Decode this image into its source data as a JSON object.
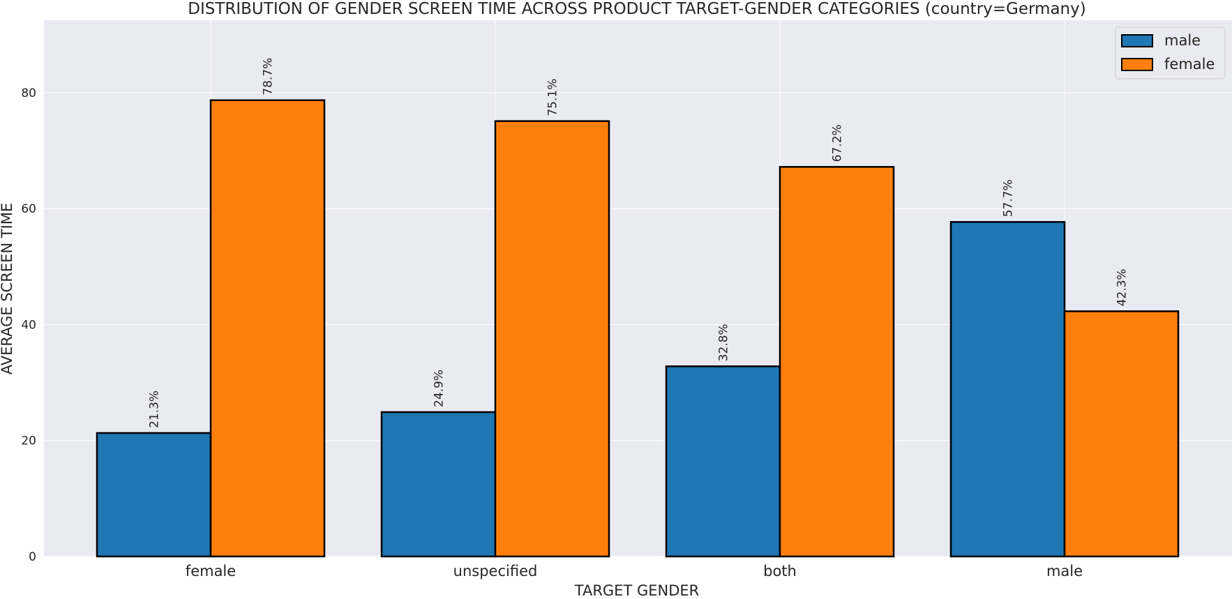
{
  "chart_data": {
    "type": "bar",
    "title": "DISTRIBUTION OF GENDER SCREEN TIME ACROSS PRODUCT TARGET-GENDER CATEGORIES (country=Germany)",
    "xlabel": "TARGET GENDER",
    "ylabel": "AVERAGE SCREEN TIME",
    "categories": [
      "female",
      "unspecified",
      "both",
      "male"
    ],
    "series": [
      {
        "name": "male",
        "values": [
          21.3,
          24.9,
          32.8,
          57.7
        ],
        "labels": [
          "21.3%",
          "24.9%",
          "32.8%",
          "57.7%"
        ],
        "color": "#1f77b4"
      },
      {
        "name": "female",
        "values": [
          78.7,
          75.1,
          67.2,
          42.3
        ],
        "labels": [
          "78.7%",
          "75.1%",
          "67.2%",
          "42.3%"
        ],
        "color": "#ff7f0e"
      }
    ],
    "ylim": [
      0,
      92.5
    ],
    "yticks": [
      0,
      20,
      40,
      60,
      80
    ],
    "grid": true,
    "legend_position": "top-right",
    "background_color": "#eaeaf2",
    "grid_color": "#ffffff",
    "edge_color": "#000000"
  }
}
